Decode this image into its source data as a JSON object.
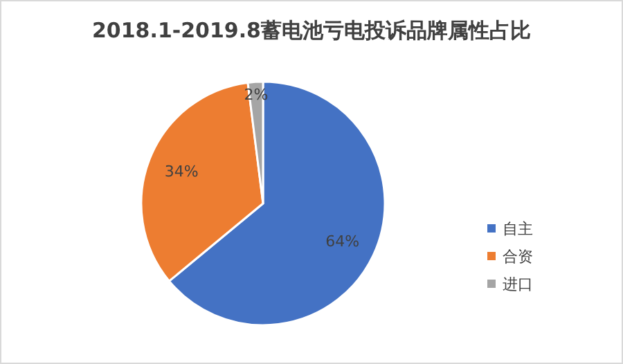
{
  "chart_data": {
    "type": "pie",
    "title": "2018.1-2019.8蓄电池亏电投诉品牌属性占比",
    "categories": [
      "自主",
      "合资",
      "进口"
    ],
    "values": [
      64,
      34,
      2
    ],
    "colors": [
      "#4472c4",
      "#ed7d31",
      "#a5a5a5"
    ],
    "value_labels": [
      "64%",
      "34%",
      "2%"
    ],
    "legend": "right"
  }
}
